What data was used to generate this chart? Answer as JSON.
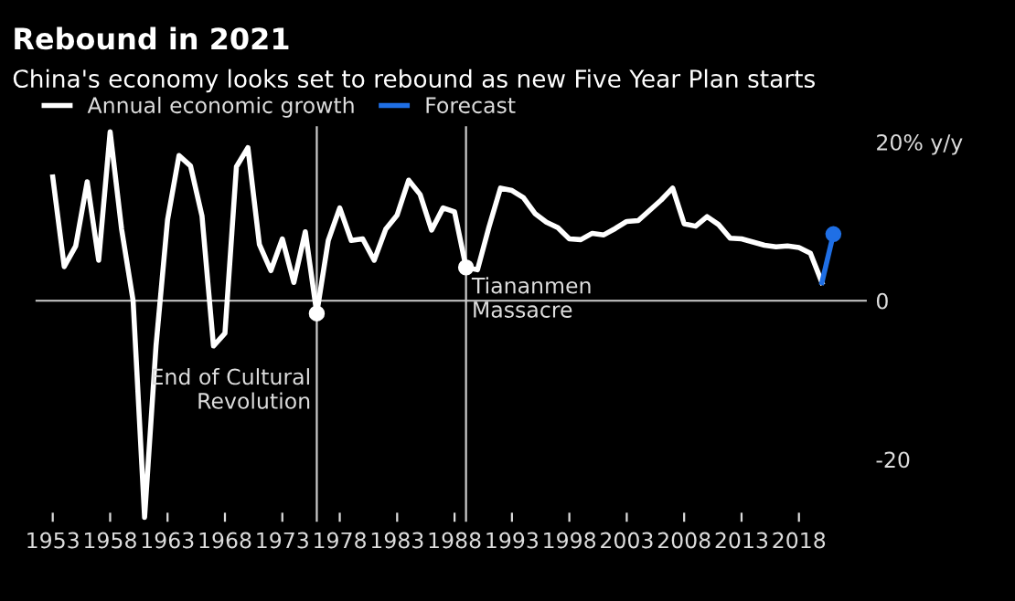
{
  "chart_data": {
    "type": "line",
    "title": "Rebound in 2021",
    "subtitle": "China's economy looks set to rebound as new Five Year Plan starts",
    "series": [
      {
        "name": "Annual economic growth",
        "color": "#ffffff",
        "x": [
          1953,
          1954,
          1955,
          1956,
          1957,
          1958,
          1959,
          1960,
          1961,
          1962,
          1963,
          1964,
          1965,
          1966,
          1967,
          1968,
          1969,
          1970,
          1971,
          1972,
          1973,
          1974,
          1975,
          1976,
          1977,
          1978,
          1979,
          1980,
          1981,
          1982,
          1983,
          1984,
          1985,
          1986,
          1987,
          1988,
          1989,
          1990,
          1991,
          1992,
          1993,
          1994,
          1995,
          1996,
          1997,
          1998,
          1999,
          2000,
          2001,
          2002,
          2003,
          2004,
          2005,
          2006,
          2007,
          2008,
          2009,
          2010,
          2011,
          2012,
          2013,
          2014,
          2015,
          2016,
          2017,
          2018,
          2019,
          2020
        ],
        "values": [
          15.6,
          4.3,
          6.9,
          15.0,
          5.1,
          21.3,
          9.0,
          0.0,
          -27.3,
          -5.6,
          10.2,
          18.3,
          17.0,
          10.7,
          -5.7,
          -4.1,
          16.9,
          19.3,
          7.1,
          3.8,
          7.8,
          2.3,
          8.7,
          -1.6,
          7.6,
          11.7,
          7.6,
          7.8,
          5.1,
          9.0,
          10.8,
          15.2,
          13.4,
          8.9,
          11.7,
          11.2,
          4.2,
          3.9,
          9.3,
          14.2,
          13.9,
          13.0,
          11.0,
          9.9,
          9.2,
          7.8,
          7.7,
          8.5,
          8.3,
          9.1,
          10.0,
          10.1,
          11.4,
          12.7,
          14.2,
          9.7,
          9.4,
          10.6,
          9.6,
          7.9,
          7.8,
          7.4,
          7.0,
          6.8,
          6.9,
          6.7,
          6.0,
          2.3
        ]
      },
      {
        "name": "Forecast",
        "color": "#1f6fe5",
        "x": [
          2020,
          2021
        ],
        "values": [
          2.3,
          8.4
        ]
      },
      {
        "type": "scatter",
        "color": "#1f6fe5",
        "x": [
          2021
        ],
        "values": [
          8.4
        ],
        "marker": "circle"
      },
      {
        "type": "scatter",
        "color": "#ffffff",
        "x": [
          1976,
          1989
        ],
        "values": [
          -1.6,
          4.2
        ],
        "marker": "circle"
      }
    ],
    "xlim": [
      1951.5,
      2024
    ],
    "xticks": [
      1953,
      1958,
      1963,
      1968,
      1973,
      1978,
      1983,
      1988,
      1993,
      1998,
      2003,
      2008,
      2013,
      2018
    ],
    "ylim": [
      -28,
      22
    ],
    "yticks": [
      {
        "value": 20,
        "label": "20% y/y"
      },
      0,
      -20
    ],
    "ref_lines": [
      {
        "axis": "x",
        "value": 1976,
        "color": "#cccccc"
      },
      {
        "axis": "x",
        "value": 1989,
        "color": "#cccccc"
      },
      {
        "axis": "y",
        "value": 0,
        "color": "#cccccc"
      }
    ],
    "annotations": [
      "End of Cultural\nRevolution",
      "Tiananmen\nMassacre"
    ],
    "legend": "top left",
    "grid": false,
    "marker": "none",
    "line_style": "solid"
  }
}
